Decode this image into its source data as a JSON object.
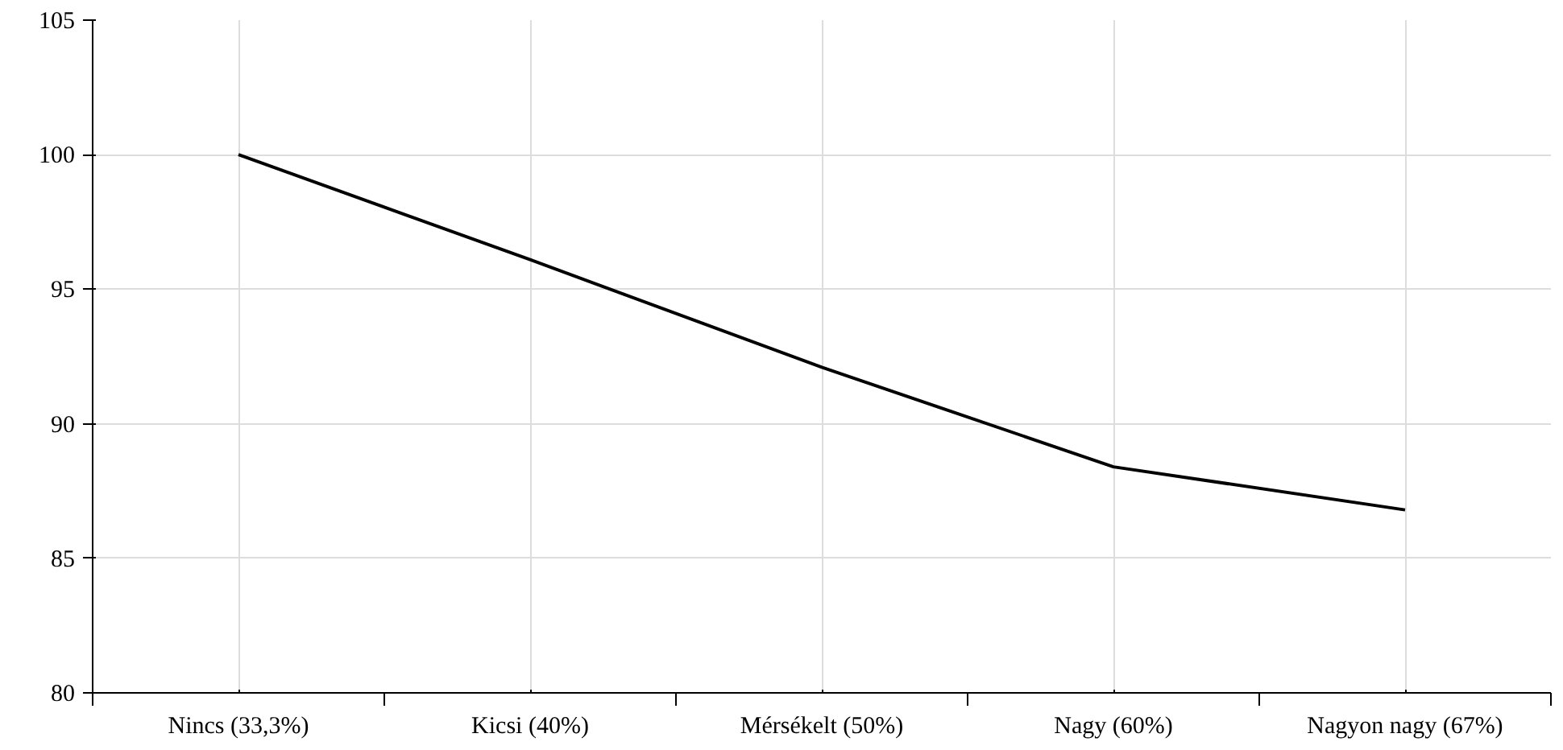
{
  "chart_data": {
    "type": "line",
    "categories": [
      "Nincs (33,3%)",
      "Kicsi (40%)",
      "Mérsékelt (50%)",
      "Nagy (60%)",
      "Nagyon nagy (67%)"
    ],
    "series": [
      {
        "color": "#000000",
        "values": [
          100,
          96.1,
          92.1,
          88.4,
          86.8
        ]
      }
    ],
    "ylim": [
      80,
      105
    ],
    "yticks": [
      80,
      85,
      90,
      95,
      100,
      105
    ],
    "grid": true,
    "marker": "none",
    "line_style": "solid"
  }
}
